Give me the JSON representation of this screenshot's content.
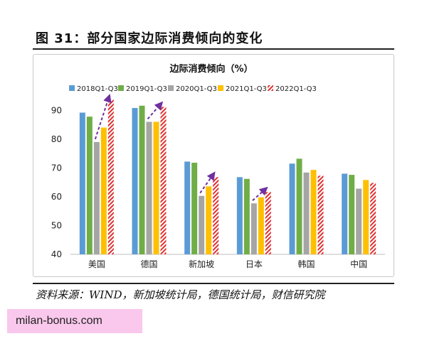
{
  "figure_title": "图 31：部分国家边际消费倾向的变化",
  "source_note": "资料来源：WIND，新加坡统计局，德国统计局，财信研究院",
  "watermark": "milan-bonus.com",
  "colors": {
    "s2018": "#5b9bd5",
    "s2019": "#70ad47",
    "s2020": "#a5a5a5",
    "s2021": "#ffc000",
    "s2022": "#e0302f",
    "arrow": "#7030a0"
  },
  "chart_data": {
    "type": "bar",
    "title": "边际消费倾向（%）",
    "categories": [
      "美国",
      "德国",
      "新加坡",
      "日本",
      "韩国",
      "中国"
    ],
    "series": [
      {
        "name": "2018Q1-Q3",
        "values": [
          89.2,
          90.8,
          72.2,
          66.8,
          71.5,
          68.0
        ]
      },
      {
        "name": "2019Q1-Q3",
        "values": [
          87.8,
          91.6,
          71.8,
          66.2,
          73.2,
          67.6
        ]
      },
      {
        "name": "2020Q1-Q3",
        "values": [
          79.0,
          86.0,
          60.3,
          57.7,
          68.4,
          62.8
        ]
      },
      {
        "name": "2021Q1-Q3",
        "values": [
          84.0,
          86.0,
          63.6,
          59.8,
          69.3,
          65.8
        ]
      },
      {
        "name": "2022Q1-Q3",
        "values": [
          93.7,
          91.2,
          66.8,
          61.6,
          67.3,
          64.8
        ]
      }
    ],
    "ylim": [
      40,
      95
    ],
    "yticks": [
      40,
      50,
      60,
      70,
      80,
      90
    ],
    "legend_position": "top",
    "grid": false,
    "annotations": "dashed arrows from 2020Q1-Q3 bars to 2022Q1-Q3 bars in 美国, 德国, 新加坡, 日本"
  }
}
